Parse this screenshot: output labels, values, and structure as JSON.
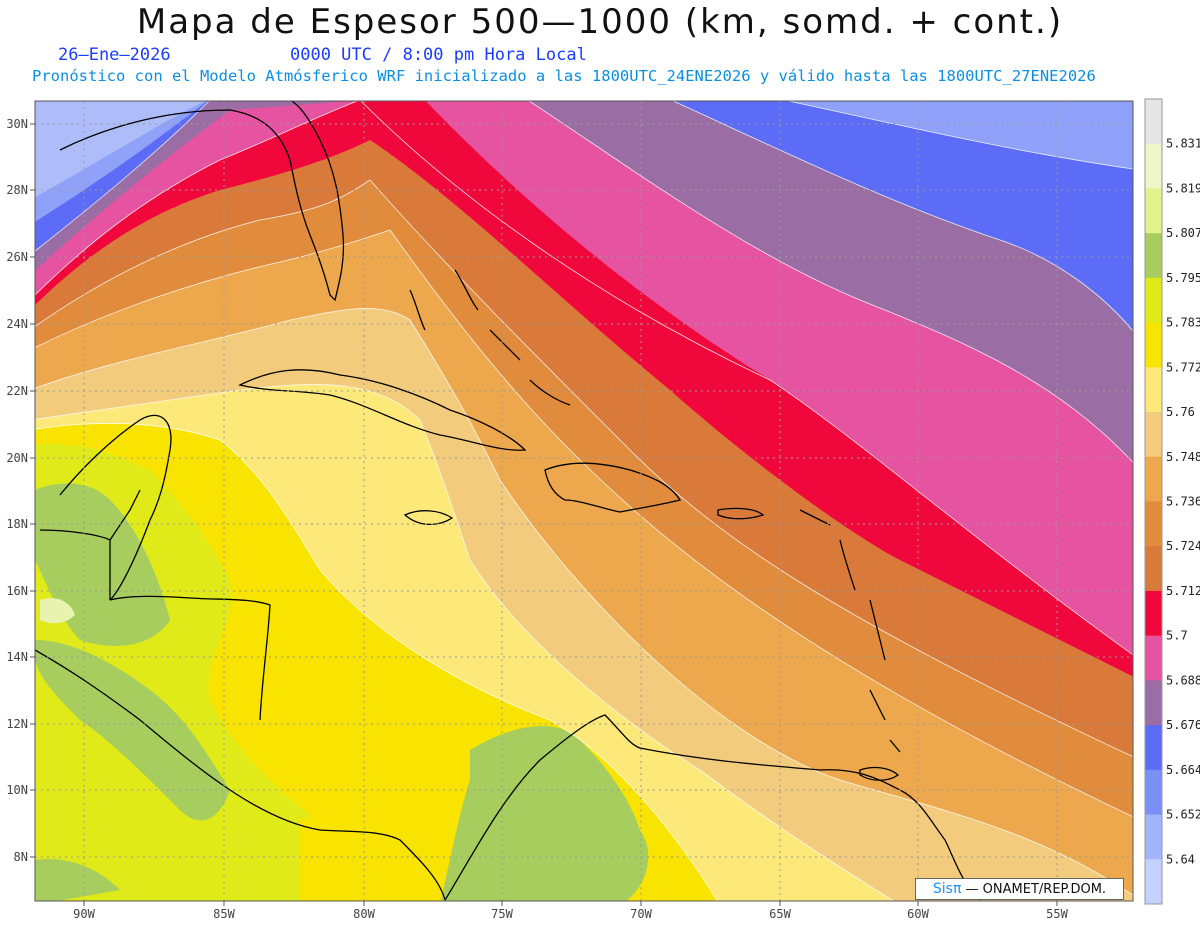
{
  "title": "Mapa de Espesor 500—1000 (km, somd. + cont.)",
  "date": "26—Ene—2026",
  "valid_time": "0000 UTC / 8:00 pm Hora Local",
  "subtitle": "Pronóstico con el Modelo Atmósferico WRF inicializado a las 1800UTC_24ENE2026 y válido hasta las  1800UTC_27ENE2026",
  "credit": {
    "brand": "Sisπ",
    "org": "— ONAMET/REP.DOM."
  },
  "lat_labels": [
    "30N",
    "28N",
    "26N",
    "24N",
    "22N",
    "20N",
    "18N",
    "16N",
    "14N",
    "12N",
    "10N",
    "8N"
  ],
  "lon_labels": [
    "90W",
    "85W",
    "80W",
    "75W",
    "70W",
    "65W",
    "60W",
    "55W"
  ],
  "colorbar": {
    "labels": [
      "5.831",
      "5.819",
      "5.807",
      "5.795",
      "5.783",
      "5.772",
      "5.76",
      "5.748",
      "5.736",
      "5.724",
      "5.712",
      "5.7",
      "5.688",
      "5.676",
      "5.664",
      "5.652",
      "5.64"
    ],
    "colors": [
      "#e6e6e6",
      "#f0f5c8",
      "#e2f28e",
      "#a6cd5e",
      "#e0ea18",
      "#f8e400",
      "#fce97a",
      "#f2cb7c",
      "#eda74c",
      "#e18b3c",
      "#d9793a",
      "#f0083c",
      "#e653a0",
      "#9a6ea4",
      "#5c6cf6",
      "#7b8ff8",
      "#a4b4fa",
      "#c4d0fe"
    ]
  }
}
